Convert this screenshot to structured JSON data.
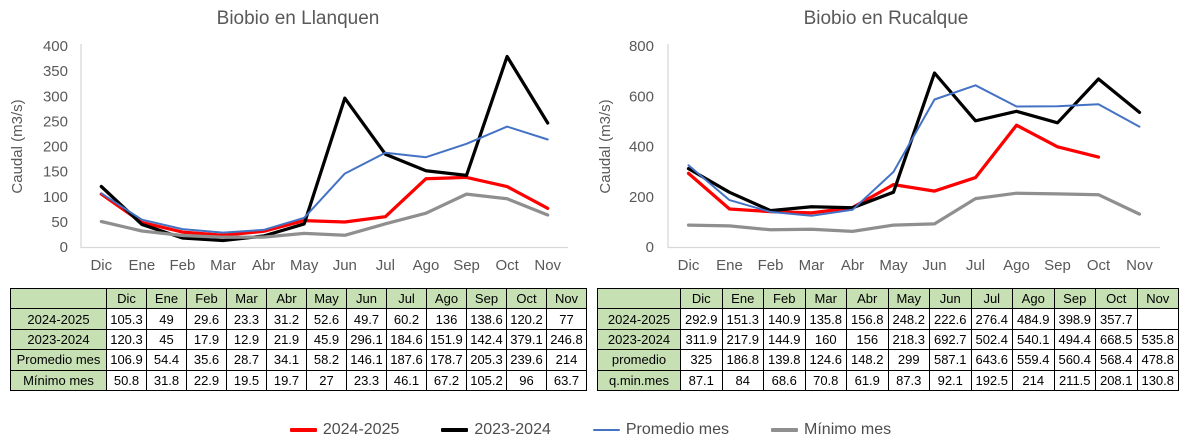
{
  "chart_data": [
    {
      "type": "line",
      "title": "Biobio en Llanquen",
      "ylabel": "Caudal (m3/s)",
      "xlabel": "",
      "ylim": [
        0,
        400
      ],
      "ytick_step": 50,
      "grid": false,
      "legend_position": "bottom-shared",
      "categories": [
        "Dic",
        "Ene",
        "Feb",
        "Mar",
        "Abr",
        "May",
        "Jun",
        "Jul",
        "Ago",
        "Sep",
        "Oct",
        "Nov"
      ],
      "series": [
        {
          "name": "2024-2025",
          "color": "#ff0000",
          "stroke_width": 3.25,
          "values": [
            105.3,
            49,
            29.6,
            23.3,
            31.2,
            52.6,
            49.7,
            60.2,
            136,
            138.6,
            120.2,
            77
          ]
        },
        {
          "name": "2023-2024",
          "color": "#000000",
          "stroke_width": 3.25,
          "values": [
            120.3,
            45,
            17.9,
            12.9,
            21.9,
            45.9,
            296.1,
            184.6,
            151.9,
            142.4,
            379.1,
            246.8
          ]
        },
        {
          "name": "Promedio mes",
          "color": "#4472c4",
          "stroke_width": 2,
          "values": [
            106.9,
            54.4,
            35.6,
            28.7,
            34.1,
            58.2,
            146.1,
            187.6,
            178.7,
            205.3,
            239.6,
            214
          ]
        },
        {
          "name": "Mínimo mes",
          "color": "#8f8f8f",
          "stroke_width": 3.25,
          "values": [
            50.8,
            31.8,
            22.9,
            19.5,
            19.7,
            27,
            23.3,
            46.1,
            67.2,
            105.2,
            96,
            63.7
          ]
        }
      ]
    },
    {
      "type": "line",
      "title": "Biobio en Rucalque",
      "ylabel": "Caudal (m3/s)",
      "xlabel": "",
      "ylim": [
        0,
        800
      ],
      "ytick_step": 200,
      "grid": false,
      "legend_position": "bottom-shared",
      "categories": [
        "Dic",
        "Ene",
        "Feb",
        "Mar",
        "Abr",
        "May",
        "Jun",
        "Jul",
        "Ago",
        "Sep",
        "Oct",
        "Nov"
      ],
      "series": [
        {
          "name": "2024-2025",
          "color": "#ff0000",
          "stroke_width": 3.25,
          "values": [
            292.9,
            151.3,
            140.9,
            135.8,
            156.8,
            248.2,
            222.6,
            276.4,
            484.9,
            398.9,
            357.7,
            null
          ]
        },
        {
          "name": "2023-2024",
          "color": "#000000",
          "stroke_width": 3.25,
          "values": [
            311.9,
            217.9,
            144.9,
            160,
            156,
            218.3,
            692.7,
            502.4,
            540.1,
            494.4,
            668.5,
            535.8
          ]
        },
        {
          "name": "Promedio mes",
          "color": "#4472c4",
          "stroke_width": 2,
          "values": [
            325,
            186.8,
            139.8,
            124.6,
            148.2,
            299,
            587.1,
            643.6,
            559.4,
            560.4,
            568.4,
            478.8
          ]
        },
        {
          "name": "Mínimo mes",
          "color": "#8f8f8f",
          "stroke_width": 3.25,
          "values": [
            87.1,
            84,
            68.6,
            70.8,
            61.9,
            87.3,
            92.1,
            192.5,
            214,
            211.5,
            208.1,
            130.8
          ]
        }
      ]
    }
  ],
  "tables": [
    {
      "header": [
        "",
        "Dic",
        "Ene",
        "Feb",
        "Mar",
        "Abr",
        "May",
        "Jun",
        "Jul",
        "Ago",
        "Sep",
        "Oct",
        "Nov"
      ],
      "rows": [
        {
          "label": "2024-2025",
          "cells": [
            "105.3",
            "49",
            "29.6",
            "23.3",
            "31.2",
            "52.6",
            "49.7",
            "60.2",
            "136",
            "138.6",
            "120.2",
            "77"
          ]
        },
        {
          "label": "2023-2024",
          "cells": [
            "120.3",
            "45",
            "17.9",
            "12.9",
            "21.9",
            "45.9",
            "296.1",
            "184.6",
            "151.9",
            "142.4",
            "379.1",
            "246.8"
          ]
        },
        {
          "label": "Promedio mes",
          "cells": [
            "106.9",
            "54.4",
            "35.6",
            "28.7",
            "34.1",
            "58.2",
            "146.1",
            "187.6",
            "178.7",
            "205.3",
            "239.6",
            "214"
          ]
        },
        {
          "label": "Mínimo mes",
          "cells": [
            "50.8",
            "31.8",
            "22.9",
            "19.5",
            "19.7",
            "27",
            "23.3",
            "46.1",
            "67.2",
            "105.2",
            "96",
            "63.7"
          ]
        }
      ]
    },
    {
      "header": [
        "",
        "Dic",
        "Ene",
        "Feb",
        "Mar",
        "Abr",
        "May",
        "Jun",
        "Jul",
        "Ago",
        "Sep",
        "Oct",
        "Nov"
      ],
      "rows": [
        {
          "label": "2024-2025",
          "cells": [
            "292.9",
            "151.3",
            "140.9",
            "135.8",
            "156.8",
            "248.2",
            "222.6",
            "276.4",
            "484.9",
            "398.9",
            "357.7",
            ""
          ]
        },
        {
          "label": "2023-2024",
          "cells": [
            "311.9",
            "217.9",
            "144.9",
            "160",
            "156",
            "218.3",
            "692.7",
            "502.4",
            "540.1",
            "494.4",
            "668.5",
            "535.8"
          ]
        },
        {
          "label": "promedio",
          "cells": [
            "325",
            "186.8",
            "139.8",
            "124.6",
            "148.2",
            "299",
            "587.1",
            "643.6",
            "559.4",
            "560.4",
            "568.4",
            "478.8"
          ]
        },
        {
          "label": "q.min.mes",
          "cells": [
            "87.1",
            "84",
            "68.6",
            "70.8",
            "61.9",
            "87.3",
            "92.1",
            "192.5",
            "214",
            "211.5",
            "208.1",
            "130.8"
          ]
        }
      ]
    }
  ],
  "legend": {
    "items": [
      {
        "label": "2024-2025",
        "color": "#ff0000",
        "thickness": 3.5
      },
      {
        "label": "2023-2024",
        "color": "#000000",
        "thickness": 3.5
      },
      {
        "label": "Promedio mes",
        "color": "#4472c4",
        "thickness": 2
      },
      {
        "label": "Mínimo mes",
        "color": "#8f8f8f",
        "thickness": 3.5
      }
    ]
  },
  "colors": {
    "axis_line": "#d9d9d9",
    "chart_text": "#595959",
    "table_header_bg": "#c6e0b4",
    "table_border": "#000000",
    "background": "#ffffff"
  }
}
